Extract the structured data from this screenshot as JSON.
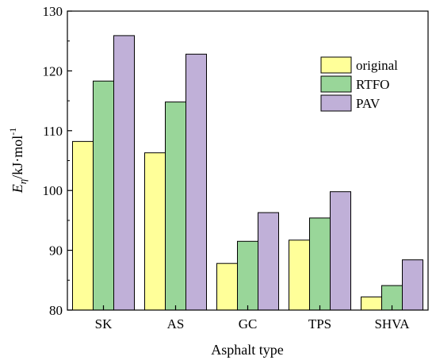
{
  "chart_data": {
    "type": "bar",
    "xlabel": "Asphalt type",
    "ylabel": {
      "main": "E",
      "subscript": "η",
      "unit": "/kJ·mol",
      "superscript": "-1"
    },
    "categories": [
      "SK",
      "AS",
      "GC",
      "TPS",
      "SHVA"
    ],
    "series": [
      {
        "name": "original",
        "color": "#ffff99",
        "values": [
          108.2,
          106.3,
          87.8,
          91.7,
          82.2
        ]
      },
      {
        "name": "RTFO",
        "color": "#99d699",
        "values": [
          118.3,
          114.8,
          91.5,
          95.4,
          84.1
        ]
      },
      {
        "name": "PAV",
        "color": "#c0b0d8",
        "values": [
          125.9,
          122.8,
          96.3,
          99.8,
          88.4
        ]
      }
    ],
    "ylim": [
      80,
      130
    ],
    "yticks": [
      80,
      90,
      100,
      110,
      120,
      130
    ],
    "legend_position": "top-right",
    "grid": false
  }
}
